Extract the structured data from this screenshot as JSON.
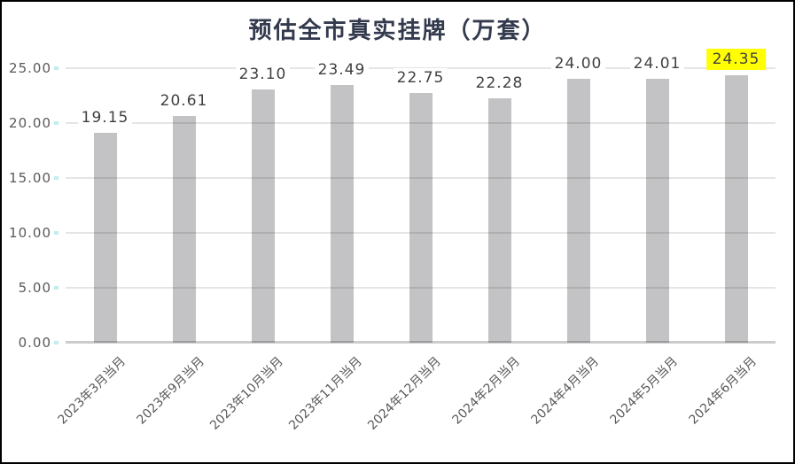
{
  "chart_data": {
    "type": "bar",
    "title": "预估全市真实挂牌（万套）",
    "categories": [
      "2023年3月当月",
      "2023年9月当月",
      "2023年10月当月",
      "2023年11月当月",
      "2024年12月当月",
      "2024年2月当月",
      "2024年4月当月",
      "2024年5月当月",
      "2024年6月当月"
    ],
    "values": [
      19.15,
      20.61,
      23.1,
      23.49,
      22.75,
      22.28,
      24.0,
      24.01,
      24.35
    ],
    "data_labels": [
      "19.15",
      "20.61",
      "23.10",
      "23.49",
      "22.75",
      "22.28",
      "24.00",
      "24.01",
      "24.35"
    ],
    "highlighted_index": 8,
    "highlighted_label": "24.35",
    "xlabel": "",
    "ylabel": "",
    "ylim": [
      0,
      25
    ],
    "yticks": [
      0,
      5,
      10,
      15,
      20,
      25
    ],
    "ytick_labels": [
      "0.00",
      "5.00",
      "10.00",
      "15.00",
      "20.00",
      "25.00"
    ],
    "grid": true,
    "legend": false,
    "colors": {
      "bar": "#c3c3c5",
      "highlight_background": "#ffff00",
      "data_label_text": "#404040",
      "axis_text": "#595959",
      "title_text": "#333a4d",
      "y_tick_mark": "#bfeeec",
      "frame_border": "#000000",
      "background": "#ffffff"
    }
  }
}
